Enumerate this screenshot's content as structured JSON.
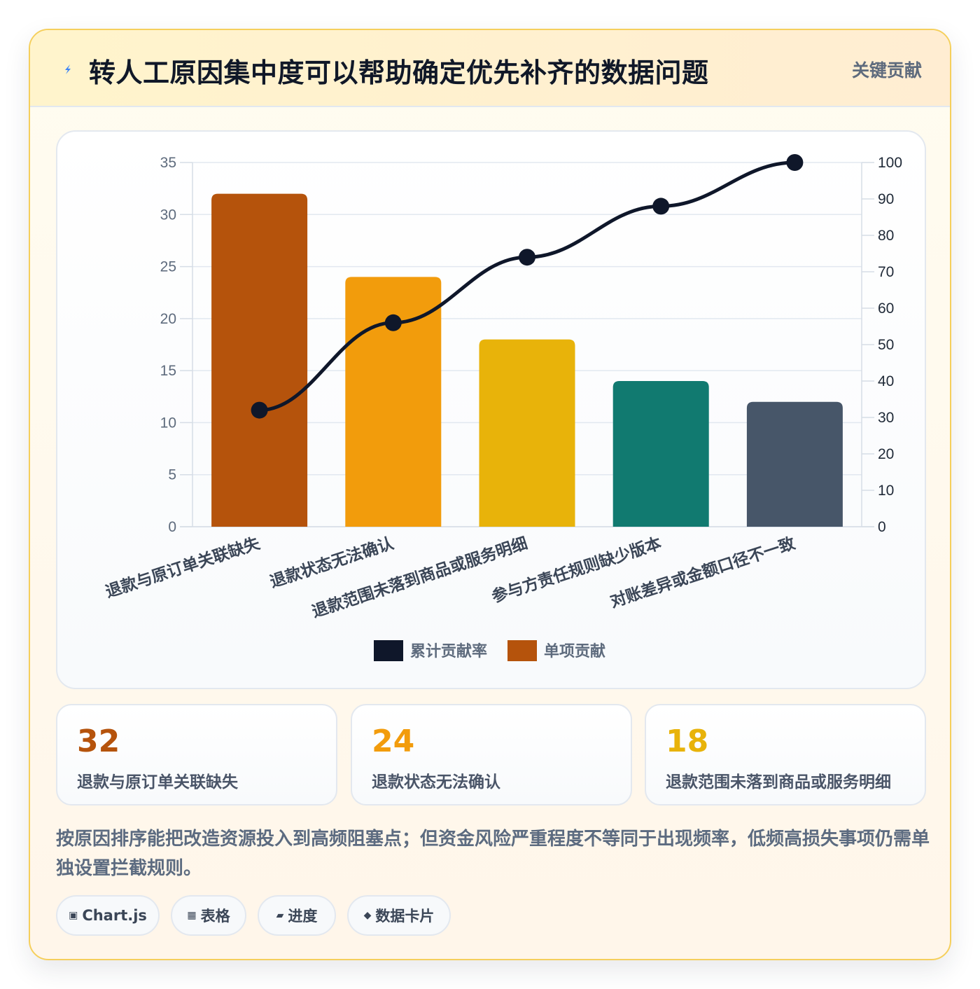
{
  "header": {
    "title": "转人工原因集中度可以帮助确定优先补齐的数据问题",
    "badge": "关键贡献",
    "icon": "lightning-bolt-icon",
    "icon_color": "#3b82f6"
  },
  "chart_data": {
    "type": "bar",
    "categories": [
      "退款与原订单关联缺失",
      "退款状态无法确认",
      "退款范围未落到商品或服务明细",
      "参与方责任规则缺少版本",
      "对账差异或金额口径不一致"
    ],
    "series": [
      {
        "name": "单项贡献",
        "type": "bar",
        "axis": "left",
        "values": [
          32,
          24,
          18,
          14,
          12
        ],
        "colors": [
          "#b5530c",
          "#f29c0c",
          "#e8b30a",
          "#117a70",
          "#475669"
        ]
      },
      {
        "name": "累计贡献率",
        "type": "line",
        "axis": "right",
        "values": [
          32,
          56,
          74,
          88,
          100
        ],
        "color": "#0f172a"
      }
    ],
    "y_left": {
      "min": 0,
      "max": 35,
      "ticks": [
        0,
        5,
        10,
        15,
        20,
        25,
        30,
        35
      ]
    },
    "y_right": {
      "min": 0,
      "max": 100,
      "ticks": [
        0,
        10,
        20,
        30,
        40,
        50,
        60,
        70,
        80,
        90,
        100
      ]
    },
    "grid": true,
    "legend": {
      "position": "bottom",
      "items": [
        {
          "label": "累计贡献率",
          "color": "#0f172a"
        },
        {
          "label": "单项贡献",
          "color": "#b5530c"
        }
      ]
    }
  },
  "stats": [
    {
      "value": "32",
      "label": "退款与原订单关联缺失",
      "color": "#b5530c"
    },
    {
      "value": "24",
      "label": "退款状态无法确认",
      "color": "#f29c0c"
    },
    {
      "value": "18",
      "label": "退款范围未落到商品或服务明细",
      "color": "#e8b30a"
    }
  ],
  "summary": "按原因排序能把改造资源投入到高频阻塞点；但资金风险严重程度不等同于出现频率，低频高损失事项仍需单独设置拦截规则。",
  "tags": [
    {
      "icon": "▣",
      "icon_name": "chart-icon",
      "label": "Chart.js"
    },
    {
      "icon": "▦",
      "icon_name": "table-icon",
      "label": "表格"
    },
    {
      "icon": "▰",
      "icon_name": "progress-icon",
      "label": "进度"
    },
    {
      "icon": "◆",
      "icon_name": "diamond-icon",
      "label": "数据卡片"
    }
  ]
}
